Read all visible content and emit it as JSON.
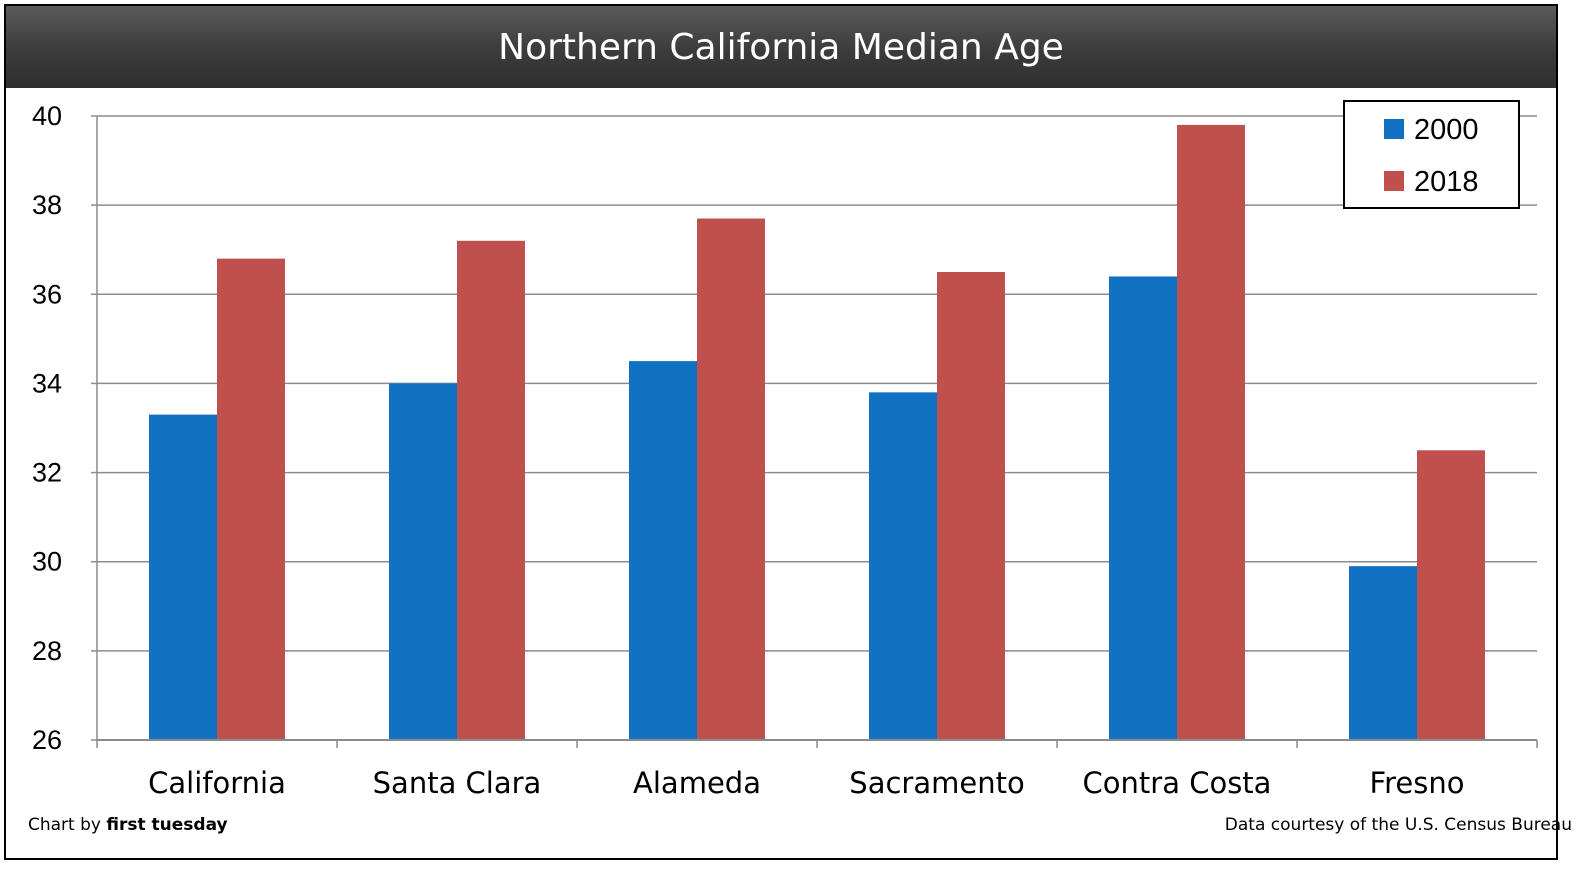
{
  "chart_data": {
    "type": "bar",
    "title": "Northern California Median Age",
    "categories": [
      "California",
      "Santa Clara",
      "Alameda",
      "Sacramento",
      "Contra Costa",
      "Fresno"
    ],
    "series": [
      {
        "name": "2000",
        "color": "#1070C2",
        "values": [
          33.3,
          34.0,
          34.5,
          33.8,
          36.4,
          29.9
        ]
      },
      {
        "name": "2018",
        "color": "#C0504D",
        "values": [
          36.8,
          37.2,
          37.7,
          36.5,
          39.8,
          32.5
        ]
      }
    ],
    "ylim": [
      26,
      40
    ],
    "yticks": [
      "26",
      "28",
      "30",
      "32",
      "34",
      "36",
      "38",
      "40"
    ],
    "grid": true,
    "legend_position": "top-right"
  },
  "footer": {
    "left_prefix": "Chart by ",
    "left_brand": "first tuesday",
    "right": "Data courtesy of the U.S. Census Bureau"
  }
}
